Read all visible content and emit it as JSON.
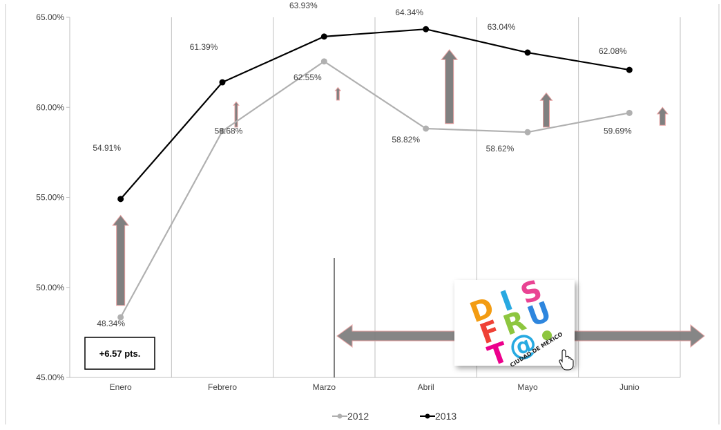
{
  "chart_data": {
    "type": "line",
    "categories": [
      "Enero",
      "Febrero",
      "Marzo",
      "Abril",
      "Mayo",
      "Junio"
    ],
    "series": [
      {
        "name": "2012",
        "color": "#b0b0b0",
        "values": [
          48.34,
          58.68,
          62.55,
          58.82,
          58.62,
          59.69
        ],
        "labels": [
          "48.34%",
          "58.68%",
          "62.55%",
          "58.82%",
          "58.62%",
          "59.69%"
        ]
      },
      {
        "name": "2013",
        "color": "#000000",
        "values": [
          54.91,
          61.39,
          63.93,
          64.34,
          63.04,
          62.08
        ],
        "labels": [
          "54.91%",
          "61.39%",
          "63.93%",
          "64.34%",
          "63.04%",
          "62.08%"
        ]
      }
    ],
    "ylim": [
      45,
      65
    ],
    "yticks": [
      {
        "value": 65,
        "label": "65.00%"
      },
      {
        "value": 60,
        "label": "60.00%"
      },
      {
        "value": 55,
        "label": "55.00%"
      },
      {
        "value": 50,
        "label": "50.00%"
      },
      {
        "value": 45,
        "label": "45.00%"
      }
    ],
    "grid": "vertical",
    "legend": "bottom-center",
    "annotation": "+6.57 pts.",
    "arrow_color": "#808080"
  },
  "logo": {
    "rows": [
      [
        {
          "ch": "D",
          "color": "#f39c12"
        },
        {
          "ch": "I",
          "color": "#29a9e1"
        },
        {
          "ch": "S",
          "color": "#e94393"
        }
      ],
      [
        {
          "ch": "F",
          "color": "#ef4136"
        },
        {
          "ch": "R",
          "color": "#8dc63f"
        },
        {
          "ch": "U",
          "color": "#2e86de"
        }
      ],
      [
        {
          "ch": "T",
          "color": "#ec008c"
        },
        {
          "ch": "@",
          "color": "#27aae1"
        },
        {
          "ch": "•",
          "color": "#8dc63f"
        }
      ]
    ],
    "caption": "CIUDAD DE MÉXICO"
  }
}
